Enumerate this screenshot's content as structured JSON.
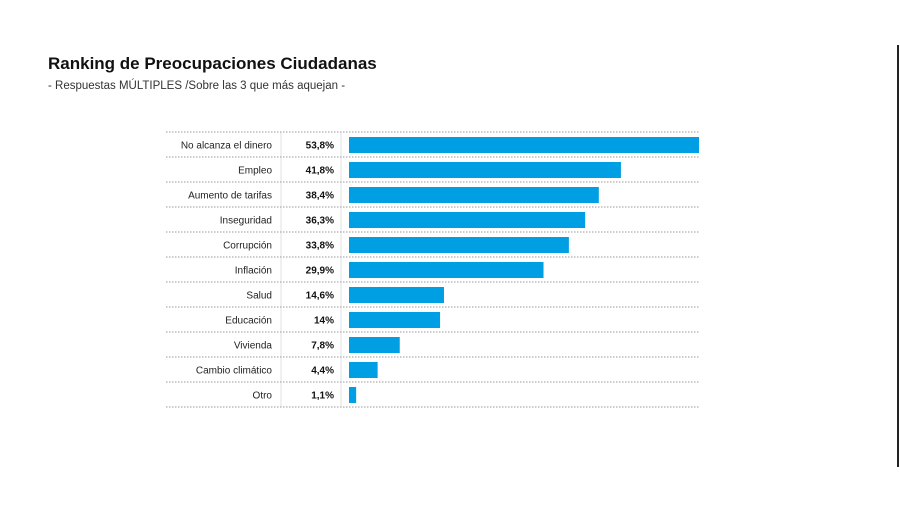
{
  "chart_data": {
    "type": "bar",
    "orientation": "horizontal",
    "title": "Ranking de Preocupaciones Ciudadanas",
    "subtitle": "- Respuestas MÚLTIPLES  /Sobre las 3 que más aquejan -",
    "categories": [
      "No alcanza el dinero",
      "Empleo",
      "Aumento de tarifas",
      "Inseguridad",
      "Corrupción",
      "Inflación",
      "Salud",
      "Educación",
      "Vivienda",
      "Cambio climático",
      "Otro"
    ],
    "values": [
      53.8,
      41.8,
      38.4,
      36.3,
      33.8,
      29.9,
      14.6,
      14,
      7.8,
      4.4,
      1.1
    ],
    "value_labels": [
      "53,8%",
      "41,8%",
      "38,4%",
      "36,3%",
      "33,8%",
      "29,9%",
      "14,6%",
      "14%",
      "7,8%",
      "4,4%",
      "1,1%"
    ],
    "xlim": [
      0,
      53.8
    ],
    "grid": false,
    "legend": "none",
    "bar_color": "#009fe3"
  }
}
